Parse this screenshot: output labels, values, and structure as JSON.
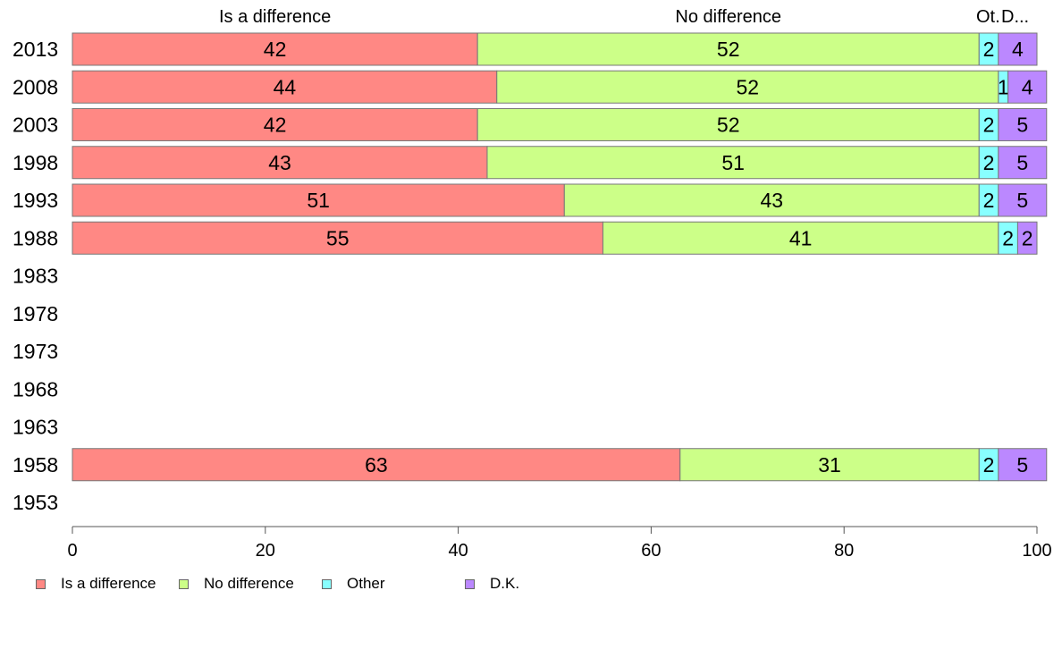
{
  "chart_data": {
    "type": "bar",
    "orientation": "horizontal",
    "stacked": true,
    "categories": [
      "2013",
      "2008",
      "2003",
      "1998",
      "1993",
      "1988",
      "1983",
      "1978",
      "1973",
      "1968",
      "1963",
      "1958",
      "1953"
    ],
    "series": [
      {
        "name": "Is a difference",
        "color": "#ff8884",
        "values": [
          42,
          44,
          42,
          43,
          51,
          55,
          null,
          null,
          null,
          null,
          null,
          63,
          null
        ]
      },
      {
        "name": "No difference",
        "color": "#ccff88",
        "values": [
          52,
          52,
          52,
          51,
          43,
          41,
          null,
          null,
          null,
          null,
          null,
          31,
          null
        ]
      },
      {
        "name": "Other",
        "color": "#88ffff",
        "values": [
          2,
          1,
          2,
          2,
          2,
          2,
          null,
          null,
          null,
          null,
          null,
          2,
          null
        ]
      },
      {
        "name": "D.K.",
        "color": "#bb88ff",
        "values": [
          4,
          4,
          5,
          5,
          5,
          2,
          null,
          null,
          null,
          null,
          null,
          5,
          null
        ]
      }
    ],
    "column_headers": [
      "Is a difference",
      "No difference",
      "Ot.",
      "D..."
    ],
    "xlim": [
      0,
      100
    ],
    "xticks": [
      "0",
      "20",
      "40",
      "60",
      "80",
      "100"
    ],
    "grid": false,
    "legend_position": "bottom"
  }
}
